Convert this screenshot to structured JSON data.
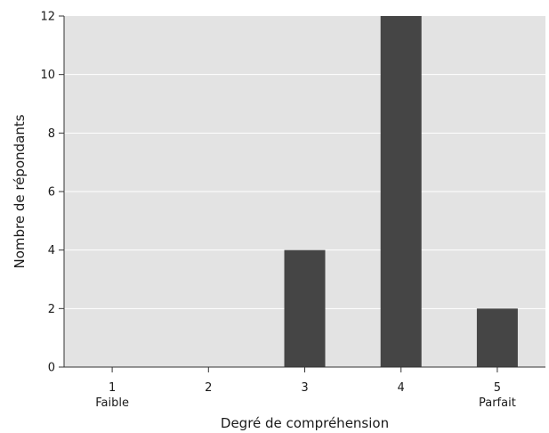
{
  "chart_data": {
    "type": "bar",
    "categories": [
      "1",
      "2",
      "3",
      "4",
      "5"
    ],
    "category_sublabels": [
      "Faible",
      "",
      "",
      "",
      "Parfait"
    ],
    "values": [
      0,
      0,
      4,
      12,
      2
    ],
    "xlabel": "Degré de compréhension",
    "ylabel": "Nombre de répondants",
    "ylim": [
      0,
      12
    ],
    "yticks": [
      0,
      2,
      4,
      6,
      8,
      10,
      12
    ],
    "grid": true,
    "colors": {
      "plot_background": "#e3e3e3",
      "bar": "#454545",
      "gridline": "#ffffff",
      "axis": "#333333"
    }
  }
}
